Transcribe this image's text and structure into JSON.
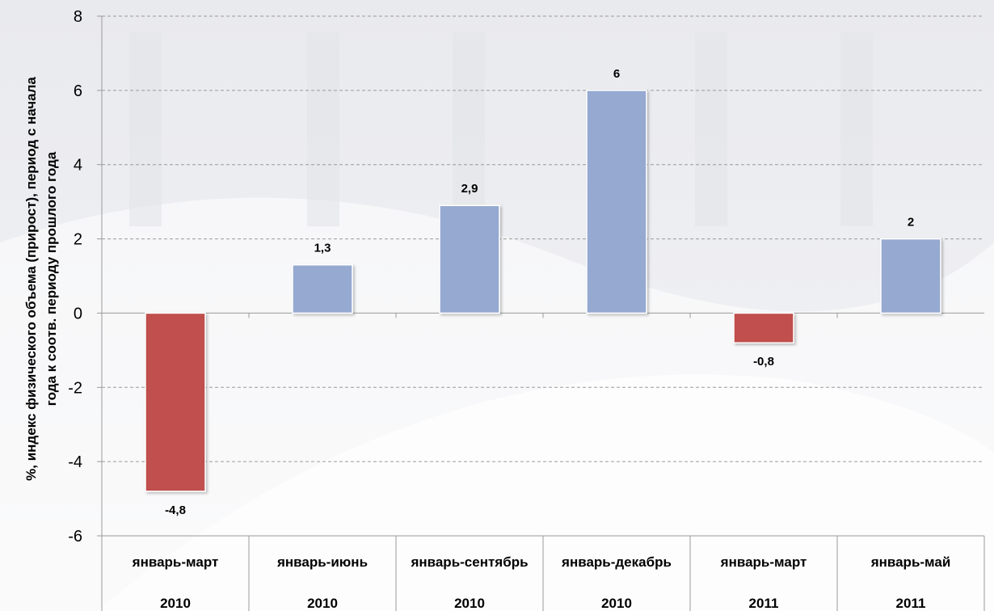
{
  "chart_data": {
    "type": "bar",
    "categories": [
      [
        "январь-март",
        "2010"
      ],
      [
        "январь-июнь",
        "2010"
      ],
      [
        "январь-сентябрь",
        "2010"
      ],
      [
        "январь-декабрь",
        "2010"
      ],
      [
        "январь-март",
        "2011"
      ],
      [
        "январь-май",
        "2011"
      ]
    ],
    "values": [
      -4.8,
      1.3,
      2.9,
      6,
      -0.8,
      2
    ],
    "data_labels": [
      "-4,8",
      "1,3",
      "2,9",
      "6",
      "-0,8",
      "2"
    ],
    "ylabel_lines": [
      "%, индекс физического объема (прирост), период с начала",
      "года к соотв. периоду прошлого года"
    ],
    "ylim": [
      -6,
      8
    ],
    "yticks": [
      -6,
      -4,
      -2,
      0,
      2,
      4,
      6,
      8
    ],
    "grid": true,
    "legend": "none",
    "colors": {
      "positive": "#95a9d1",
      "negative": "#c0504d",
      "grid": "#9a9a9a",
      "axis": "#9a9a9a"
    }
  }
}
